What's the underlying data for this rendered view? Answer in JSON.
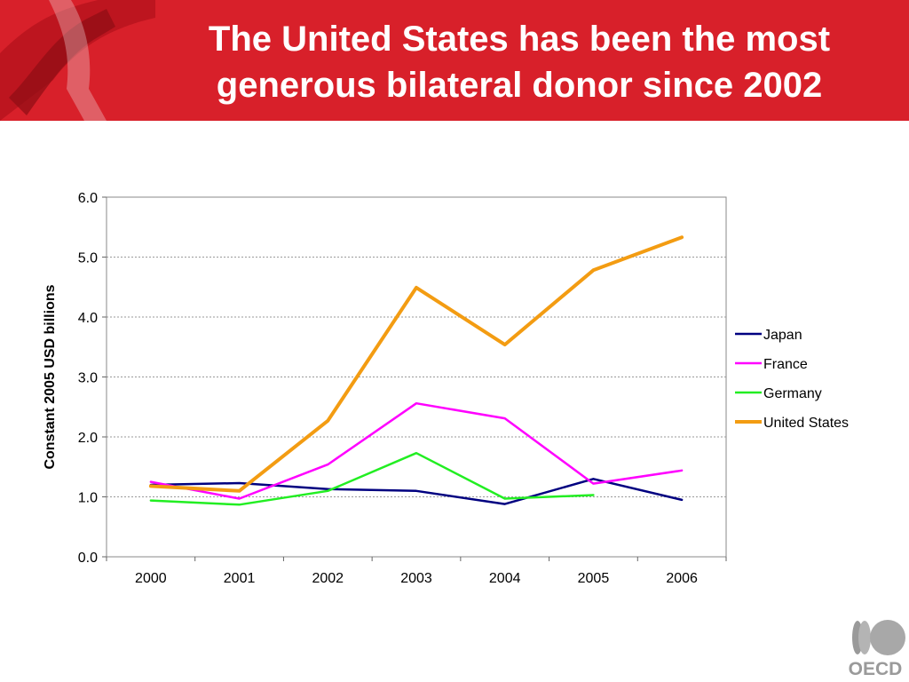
{
  "slide": {
    "title_line1": "The United States has been the most",
    "title_line2": "generous bilateral donor since 2002",
    "logo_text": "OECD"
  },
  "colors": {
    "banner": "#d8202a",
    "Japan": "#000080",
    "France": "#ff00ff",
    "Germany": "#22ee22",
    "United States": "#f39c12"
  },
  "chart_data": {
    "type": "line",
    "title": "",
    "xlabel": "",
    "ylabel": "Constant 2005 USD billions",
    "categories": [
      "2000",
      "2001",
      "2002",
      "2003",
      "2004",
      "2005",
      "2006"
    ],
    "ylim": [
      0,
      6
    ],
    "yticks": [
      "0.0",
      "1.0",
      "2.0",
      "3.0",
      "4.0",
      "5.0",
      "6.0"
    ],
    "grid": true,
    "legend_position": "right",
    "series": [
      {
        "name": "Japan",
        "values": [
          1.2,
          1.23,
          1.13,
          1.1,
          0.88,
          1.3,
          0.95
        ]
      },
      {
        "name": "France",
        "values": [
          1.25,
          0.97,
          1.54,
          2.56,
          2.31,
          1.22,
          1.44
        ]
      },
      {
        "name": "Germany",
        "values": [
          0.94,
          0.87,
          1.1,
          1.73,
          0.97,
          1.03,
          null
        ]
      },
      {
        "name": "United States",
        "values": [
          1.18,
          1.1,
          2.27,
          4.49,
          3.54,
          4.78,
          5.33
        ]
      }
    ]
  }
}
